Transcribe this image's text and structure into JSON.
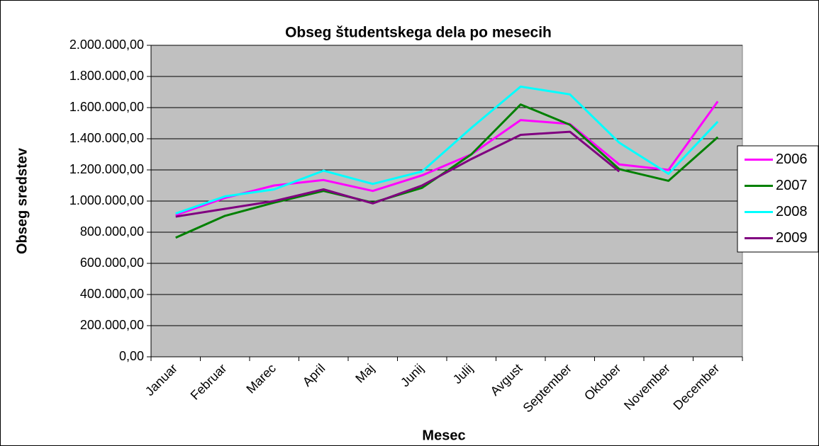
{
  "chart_data": {
    "type": "line",
    "title": "Obseg študentskega dela po mesecih",
    "xlabel": "Mesec",
    "ylabel": "Obseg sredstev",
    "categories": [
      "Januar",
      "Februar",
      "Marec",
      "April",
      "Maj",
      "Junij",
      "Julij",
      "Avgust",
      "September",
      "Oktober",
      "November",
      "December"
    ],
    "series": [
      {
        "name": "2006",
        "color": "#ff00ff",
        "values": [
          910000,
          1020000,
          1100000,
          1135000,
          1065000,
          1165000,
          1300000,
          1520000,
          1495000,
          1235000,
          1200000,
          1640000
        ]
      },
      {
        "name": "2007",
        "color": "#008000",
        "values": [
          765000,
          905000,
          990000,
          1065000,
          990000,
          1085000,
          1300000,
          1620000,
          1490000,
          1205000,
          1130000,
          1410000
        ]
      },
      {
        "name": "2008",
        "color": "#00ffff",
        "values": [
          920000,
          1030000,
          1075000,
          1195000,
          1110000,
          1190000,
          1470000,
          1735000,
          1685000,
          1375000,
          1175000,
          1510000
        ]
      },
      {
        "name": "2009",
        "color": "#800080",
        "values": [
          900000,
          950000,
          1000000,
          1075000,
          985000,
          1100000,
          1270000,
          1425000,
          1445000,
          1190000,
          null,
          null
        ]
      }
    ],
    "ylim": [
      0,
      2000000
    ],
    "yticks": [
      {
        "value": 0,
        "label": "0,00"
      },
      {
        "value": 200000,
        "label": "200.000,00"
      },
      {
        "value": 400000,
        "label": "400.000,00"
      },
      {
        "value": 600000,
        "label": "600.000,00"
      },
      {
        "value": 800000,
        "label": "800.000,00"
      },
      {
        "value": 1000000,
        "label": "1.000.000,00"
      },
      {
        "value": 1200000,
        "label": "1.200.000,00"
      },
      {
        "value": 1400000,
        "label": "1.400.000,00"
      },
      {
        "value": 1600000,
        "label": "1.600.000,00"
      },
      {
        "value": 1800000,
        "label": "1.800.000,00"
      },
      {
        "value": 2000000,
        "label": "2.000.000,00"
      }
    ],
    "grid": true,
    "legend": "right",
    "plot_background": "#c0c0c0"
  }
}
